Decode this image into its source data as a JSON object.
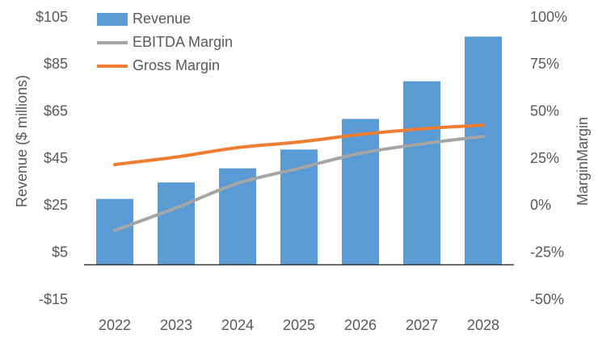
{
  "chart_data": {
    "type": "bar",
    "categories": [
      "2022",
      "2023",
      "2024",
      "2025",
      "2026",
      "2027",
      "2028"
    ],
    "series": [
      {
        "name": "Revenue",
        "type": "bar",
        "color": "#5b9bd5",
        "values": [
          28,
          35,
          41,
          49,
          62,
          78,
          97
        ]
      },
      {
        "name": "EBITDA Margin",
        "type": "line",
        "axis": "y2",
        "color": "#a5a5a5",
        "values": [
          -13,
          -1,
          12,
          20,
          28,
          33,
          37
        ]
      },
      {
        "name": "Gross Margin",
        "type": "line",
        "axis": "y2",
        "color": "#ed7d31",
        "values": [
          22,
          26,
          31,
          34,
          38,
          41,
          43
        ]
      }
    ],
    "y_label": "Revenue ($ millions)",
    "y2_label": "MarginMargin",
    "ylim": [
      -15,
      105
    ],
    "yticks": [
      {
        "value": -15,
        "label": "-$15"
      },
      {
        "value": 5,
        "label": "$5"
      },
      {
        "value": 25,
        "label": "$25"
      },
      {
        "value": 45,
        "label": "$45"
      },
      {
        "value": 65,
        "label": "$65"
      },
      {
        "value": 85,
        "label": "$85"
      },
      {
        "value": 105,
        "label": "$105"
      }
    ],
    "y2lim": [
      -50,
      100
    ],
    "y2ticks": [
      {
        "value": -50,
        "label": "-50%"
      },
      {
        "value": -25,
        "label": "-25%"
      },
      {
        "value": 0,
        "label": "0%"
      },
      {
        "value": 25,
        "label": "25%"
      },
      {
        "value": 50,
        "label": "50%"
      },
      {
        "value": 75,
        "label": "75%"
      },
      {
        "value": 100,
        "label": "100%"
      }
    ],
    "legend": "upper-left",
    "grid": false
  }
}
